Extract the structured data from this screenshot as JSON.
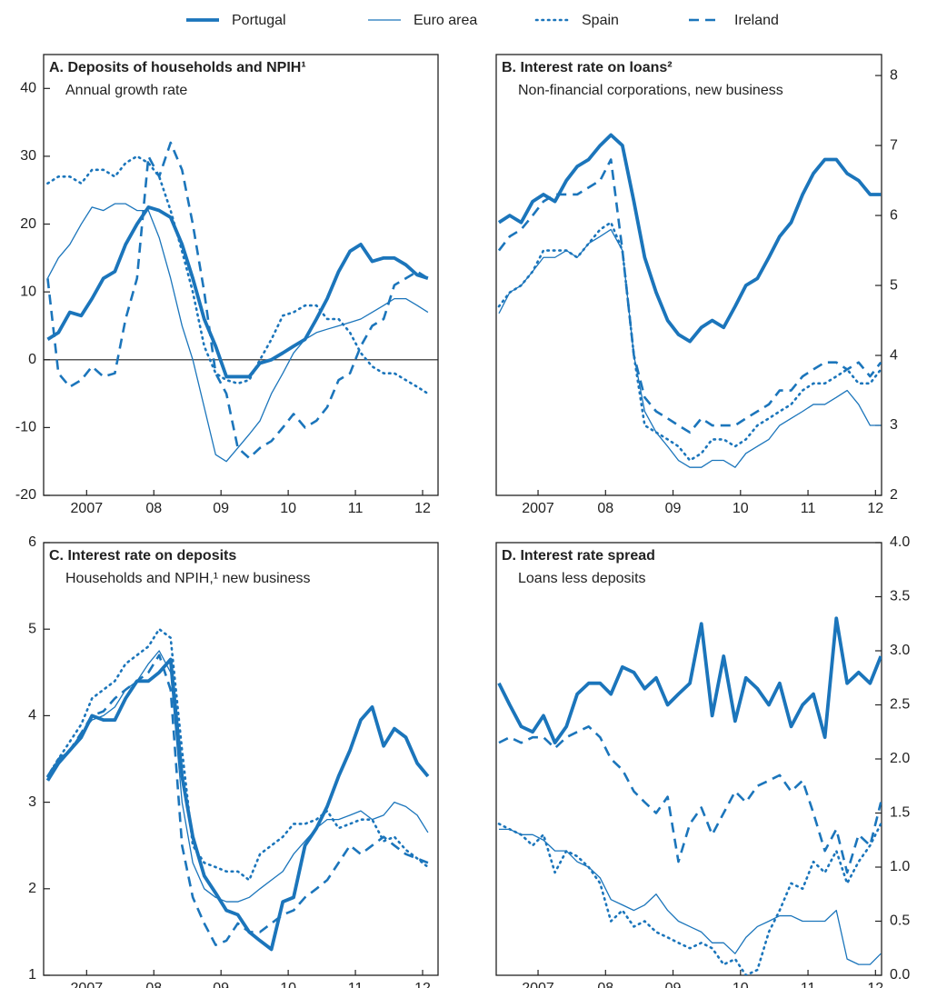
{
  "chart_data": [
    {
      "type": "line",
      "title": "A. Deposits of households and NPIH¹",
      "subtitle": "Annual growth rate",
      "y_axis_side": "left",
      "zero_line": true,
      "xlim": [
        2006.86,
        2012.73
      ],
      "xticks": [
        {
          "value": 2007.5,
          "label": "2007"
        },
        {
          "value": 2008.5,
          "label": "08"
        },
        {
          "value": 2009.5,
          "label": "09"
        },
        {
          "value": 2010.5,
          "label": "10"
        },
        {
          "value": 2011.5,
          "label": "11"
        },
        {
          "value": 2012.5,
          "label": "12"
        }
      ],
      "ylim": [
        -20,
        45
      ],
      "yticks": [
        -20,
        -10,
        0,
        10,
        20,
        30,
        40
      ],
      "x": [
        2006.92,
        2007.08,
        2007.25,
        2007.42,
        2007.58,
        2007.75,
        2007.92,
        2008.08,
        2008.25,
        2008.42,
        2008.58,
        2008.75,
        2008.92,
        2009.08,
        2009.25,
        2009.42,
        2009.58,
        2009.75,
        2009.92,
        2010.08,
        2010.25,
        2010.42,
        2010.58,
        2010.75,
        2010.92,
        2011.08,
        2011.25,
        2011.42,
        2011.58,
        2011.75,
        2011.92,
        2012.08,
        2012.25,
        2012.42,
        2012.58
      ],
      "series": [
        {
          "name": "Portugal",
          "color": "#1b75bb",
          "line_style": "thick",
          "values": [
            3,
            4,
            7,
            6.5,
            9,
            12,
            13,
            17,
            20,
            22.5,
            22,
            21,
            17,
            12,
            6,
            2,
            -2.5,
            -2.5,
            -2.5,
            -0.5,
            0,
            1,
            2,
            3,
            6,
            9,
            13,
            16,
            17,
            14.5,
            15,
            15,
            14,
            12.5,
            12
          ]
        },
        {
          "name": "Euro area",
          "color": "#1b75bb",
          "line_style": "thin",
          "values": [
            12,
            15,
            17,
            20,
            22.5,
            22,
            23,
            23,
            22,
            22,
            18,
            12,
            5,
            0,
            -7,
            -14,
            -15,
            -13,
            -11,
            -9,
            -5,
            -2,
            1,
            3,
            4,
            4.5,
            5,
            5.5,
            6,
            7,
            8,
            9,
            9,
            8,
            7
          ]
        },
        {
          "name": "Spain",
          "color": "#1b75bb",
          "line_style": "dotted",
          "values": [
            26,
            27,
            27,
            26,
            28,
            28,
            27,
            29,
            30,
            29,
            27,
            22,
            16,
            10,
            2,
            -2,
            -3,
            -3.5,
            -3,
            0,
            3,
            6.5,
            7,
            8,
            8,
            6,
            6,
            4,
            1,
            -1,
            -2,
            -2,
            -3,
            -4,
            -5
          ]
        },
        {
          "name": "Ireland",
          "color": "#1b75bb",
          "line_style": "dashed",
          "values": [
            12,
            -2,
            -4,
            -3,
            -1,
            -2.5,
            -2,
            6,
            12,
            30,
            27,
            32,
            28,
            20,
            10,
            -2,
            -5,
            -13,
            -14.5,
            -13,
            -12,
            -10,
            -8,
            -10,
            -9,
            -7,
            -3,
            -2,
            2,
            5,
            6,
            11,
            12,
            13,
            12
          ]
        }
      ]
    },
    {
      "type": "line",
      "title": "B. Interest rate on loans²",
      "subtitle": "Non-financial corporations, new business",
      "y_axis_side": "right",
      "zero_line": false,
      "xlim": [
        2006.88,
        2012.59
      ],
      "xticks": [
        {
          "value": 2007.5,
          "label": "2007"
        },
        {
          "value": 2008.5,
          "label": "08"
        },
        {
          "value": 2009.5,
          "label": "09"
        },
        {
          "value": 2010.5,
          "label": "10"
        },
        {
          "value": 2011.5,
          "label": "11"
        },
        {
          "value": 2012.5,
          "label": "12"
        }
      ],
      "ylim": [
        2,
        8.3
      ],
      "yticks": [
        2,
        3,
        4,
        5,
        6,
        7,
        8
      ],
      "x": [
        2006.92,
        2007.08,
        2007.25,
        2007.42,
        2007.58,
        2007.75,
        2007.92,
        2008.08,
        2008.25,
        2008.42,
        2008.58,
        2008.75,
        2008.92,
        2009.08,
        2009.25,
        2009.42,
        2009.58,
        2009.75,
        2009.92,
        2010.08,
        2010.25,
        2010.42,
        2010.58,
        2010.75,
        2010.92,
        2011.08,
        2011.25,
        2011.42,
        2011.58,
        2011.75,
        2011.92,
        2012.08,
        2012.25,
        2012.42,
        2012.58
      ],
      "series": [
        {
          "name": "Portugal",
          "color": "#1b75bb",
          "line_style": "thick",
          "values": [
            5.9,
            6.0,
            5.9,
            6.2,
            6.3,
            6.2,
            6.5,
            6.7,
            6.8,
            7.0,
            7.15,
            7.0,
            6.2,
            5.4,
            4.9,
            4.5,
            4.3,
            4.2,
            4.4,
            4.5,
            4.4,
            4.7,
            5.0,
            5.1,
            5.4,
            5.7,
            5.9,
            6.3,
            6.6,
            6.8,
            6.8,
            6.6,
            6.5,
            6.3,
            6.3
          ]
        },
        {
          "name": "Euro area",
          "color": "#1b75bb",
          "line_style": "thin",
          "values": [
            4.6,
            4.9,
            5.0,
            5.2,
            5.4,
            5.4,
            5.5,
            5.4,
            5.6,
            5.7,
            5.8,
            5.5,
            4.0,
            3.2,
            2.9,
            2.7,
            2.5,
            2.4,
            2.4,
            2.5,
            2.5,
            2.4,
            2.6,
            2.7,
            2.8,
            3.0,
            3.1,
            3.2,
            3.3,
            3.3,
            3.4,
            3.5,
            3.3,
            3.0,
            3.0
          ]
        },
        {
          "name": "Spain",
          "color": "#1b75bb",
          "line_style": "dotted",
          "values": [
            4.7,
            4.9,
            5.0,
            5.2,
            5.5,
            5.5,
            5.5,
            5.4,
            5.6,
            5.8,
            5.9,
            5.5,
            4.0,
            3.0,
            2.9,
            2.8,
            2.7,
            2.5,
            2.6,
            2.8,
            2.8,
            2.7,
            2.8,
            3.0,
            3.1,
            3.2,
            3.3,
            3.5,
            3.6,
            3.6,
            3.7,
            3.8,
            3.6,
            3.6,
            3.8
          ]
        },
        {
          "name": "Ireland",
          "color": "#1b75bb",
          "line_style": "dashed",
          "values": [
            5.5,
            5.7,
            5.8,
            6.0,
            6.2,
            6.3,
            6.3,
            6.3,
            6.4,
            6.5,
            6.8,
            5.5,
            4.0,
            3.4,
            3.2,
            3.1,
            3.0,
            2.9,
            3.1,
            3.0,
            3.0,
            3.0,
            3.1,
            3.2,
            3.3,
            3.5,
            3.5,
            3.7,
            3.8,
            3.9,
            3.9,
            3.8,
            3.9,
            3.7,
            3.9
          ]
        }
      ]
    },
    {
      "type": "line",
      "title": "C. Interest rate on deposits",
      "subtitle": "Households and NPIH,¹ new business",
      "y_axis_side": "left",
      "zero_line": false,
      "xlim": [
        2006.86,
        2012.73
      ],
      "xticks": [
        {
          "value": 2007.5,
          "label": "2007"
        },
        {
          "value": 2008.5,
          "label": "08"
        },
        {
          "value": 2009.5,
          "label": "09"
        },
        {
          "value": 2010.5,
          "label": "10"
        },
        {
          "value": 2011.5,
          "label": "11"
        },
        {
          "value": 2012.5,
          "label": "12"
        }
      ],
      "ylim": [
        1,
        6
      ],
      "yticks": [
        1,
        2,
        3,
        4,
        5,
        6
      ],
      "x": [
        2006.92,
        2007.08,
        2007.25,
        2007.42,
        2007.58,
        2007.75,
        2007.92,
        2008.08,
        2008.25,
        2008.42,
        2008.58,
        2008.75,
        2008.92,
        2009.08,
        2009.25,
        2009.42,
        2009.58,
        2009.75,
        2009.92,
        2010.08,
        2010.25,
        2010.42,
        2010.58,
        2010.75,
        2010.92,
        2011.08,
        2011.25,
        2011.42,
        2011.58,
        2011.75,
        2011.92,
        2012.08,
        2012.25,
        2012.42,
        2012.58
      ],
      "series": [
        {
          "name": "Portugal",
          "color": "#1b75bb",
          "line_style": "thick",
          "values": [
            3.25,
            3.45,
            3.6,
            3.75,
            4.0,
            3.95,
            3.95,
            4.2,
            4.4,
            4.4,
            4.5,
            4.65,
            3.3,
            2.6,
            2.15,
            1.95,
            1.75,
            1.7,
            1.5,
            1.4,
            1.3,
            1.85,
            1.9,
            2.5,
            2.7,
            2.95,
            3.3,
            3.6,
            3.95,
            4.1,
            3.65,
            3.85,
            3.75,
            3.45,
            3.3
          ]
        },
        {
          "name": "Euro area",
          "color": "#1b75bb",
          "line_style": "thin",
          "values": [
            3.3,
            3.5,
            3.6,
            3.8,
            3.95,
            4.0,
            4.1,
            4.3,
            4.4,
            4.6,
            4.75,
            4.5,
            3.0,
            2.3,
            2.0,
            1.9,
            1.85,
            1.85,
            1.9,
            2.0,
            2.1,
            2.2,
            2.4,
            2.55,
            2.7,
            2.8,
            2.8,
            2.85,
            2.9,
            2.8,
            2.85,
            3.0,
            2.95,
            2.85,
            2.65
          ]
        },
        {
          "name": "Spain",
          "color": "#1b75bb",
          "line_style": "dotted",
          "values": [
            3.3,
            3.5,
            3.7,
            3.9,
            4.2,
            4.3,
            4.4,
            4.6,
            4.7,
            4.8,
            5.0,
            4.9,
            3.6,
            2.5,
            2.3,
            2.25,
            2.2,
            2.2,
            2.1,
            2.4,
            2.5,
            2.6,
            2.75,
            2.75,
            2.8,
            2.9,
            2.7,
            2.75,
            2.8,
            2.8,
            2.55,
            2.6,
            2.45,
            2.35,
            2.25
          ]
        },
        {
          "name": "Ireland",
          "color": "#1b75bb",
          "line_style": "dashed",
          "values": [
            3.3,
            3.5,
            3.6,
            3.8,
            4.0,
            4.05,
            4.2,
            4.3,
            4.4,
            4.5,
            4.7,
            4.3,
            2.5,
            1.9,
            1.6,
            1.35,
            1.4,
            1.6,
            1.5,
            1.5,
            1.6,
            1.7,
            1.75,
            1.9,
            2.0,
            2.1,
            2.3,
            2.5,
            2.4,
            2.5,
            2.6,
            2.5,
            2.4,
            2.35,
            2.3
          ]
        }
      ]
    },
    {
      "type": "line",
      "title": "D. Interest rate spread",
      "subtitle": "Loans less deposits",
      "y_axis_side": "right",
      "zero_line": false,
      "xlim": [
        2006.88,
        2012.59
      ],
      "xticks": [
        {
          "value": 2007.5,
          "label": "2007"
        },
        {
          "value": 2008.5,
          "label": "08"
        },
        {
          "value": 2009.5,
          "label": "09"
        },
        {
          "value": 2010.5,
          "label": "10"
        },
        {
          "value": 2011.5,
          "label": "11"
        },
        {
          "value": 2012.5,
          "label": "12"
        }
      ],
      "ylim": [
        0,
        4
      ],
      "yticks": [
        {
          "value": 0,
          "label": "0.0"
        },
        0.5,
        {
          "value": 1,
          "label": "1.0"
        },
        1.5,
        {
          "value": 2,
          "label": "2.0"
        },
        2.5,
        {
          "value": 3,
          "label": "3.0"
        },
        3.5,
        {
          "value": 4,
          "label": "4.0"
        }
      ],
      "x": [
        2006.92,
        2007.08,
        2007.25,
        2007.42,
        2007.58,
        2007.75,
        2007.92,
        2008.08,
        2008.25,
        2008.42,
        2008.58,
        2008.75,
        2008.92,
        2009.08,
        2009.25,
        2009.42,
        2009.58,
        2009.75,
        2009.92,
        2010.08,
        2010.25,
        2010.42,
        2010.58,
        2010.75,
        2010.92,
        2011.08,
        2011.25,
        2011.42,
        2011.58,
        2011.75,
        2011.92,
        2012.08,
        2012.25,
        2012.42,
        2012.58
      ],
      "series": [
        {
          "name": "Portugal",
          "color": "#1b75bb",
          "line_style": "thick",
          "values": [
            2.7,
            2.5,
            2.3,
            2.25,
            2.4,
            2.15,
            2.3,
            2.6,
            2.7,
            2.7,
            2.6,
            2.85,
            2.8,
            2.65,
            2.75,
            2.5,
            2.6,
            2.7,
            3.25,
            2.4,
            2.95,
            2.35,
            2.75,
            2.65,
            2.5,
            2.7,
            2.3,
            2.5,
            2.6,
            2.2,
            3.3,
            2.7,
            2.8,
            2.7,
            2.95
          ]
        },
        {
          "name": "Euro area",
          "color": "#1b75bb",
          "line_style": "thin",
          "values": [
            1.35,
            1.35,
            1.3,
            1.3,
            1.25,
            1.15,
            1.15,
            1.05,
            1.0,
            0.9,
            0.7,
            0.65,
            0.6,
            0.65,
            0.75,
            0.6,
            0.5,
            0.45,
            0.4,
            0.3,
            0.3,
            0.2,
            0.35,
            0.45,
            0.5,
            0.55,
            0.55,
            0.5,
            0.5,
            0.5,
            0.6,
            0.15,
            0.1,
            0.1,
            0.2
          ]
        },
        {
          "name": "Spain",
          "color": "#1b75bb",
          "line_style": "dotted",
          "values": [
            1.4,
            1.35,
            1.3,
            1.2,
            1.3,
            0.95,
            1.15,
            1.1,
            1.0,
            0.85,
            0.5,
            0.6,
            0.45,
            0.5,
            0.4,
            0.35,
            0.3,
            0.25,
            0.3,
            0.25,
            0.1,
            0.15,
            0.0,
            0.05,
            0.4,
            0.6,
            0.85,
            0.8,
            1.05,
            0.95,
            1.15,
            0.85,
            1.05,
            1.2,
            1.4
          ]
        },
        {
          "name": "Ireland",
          "color": "#1b75bb",
          "line_style": "dashed",
          "values": [
            2.15,
            2.2,
            2.15,
            2.2,
            2.2,
            2.1,
            2.2,
            2.25,
            2.3,
            2.2,
            2.0,
            1.9,
            1.7,
            1.6,
            1.5,
            1.65,
            1.05,
            1.4,
            1.55,
            1.3,
            1.5,
            1.7,
            1.6,
            1.75,
            1.8,
            1.85,
            1.7,
            1.8,
            1.5,
            1.15,
            1.35,
            0.95,
            1.3,
            1.2,
            1.6
          ]
        }
      ]
    }
  ]
}
